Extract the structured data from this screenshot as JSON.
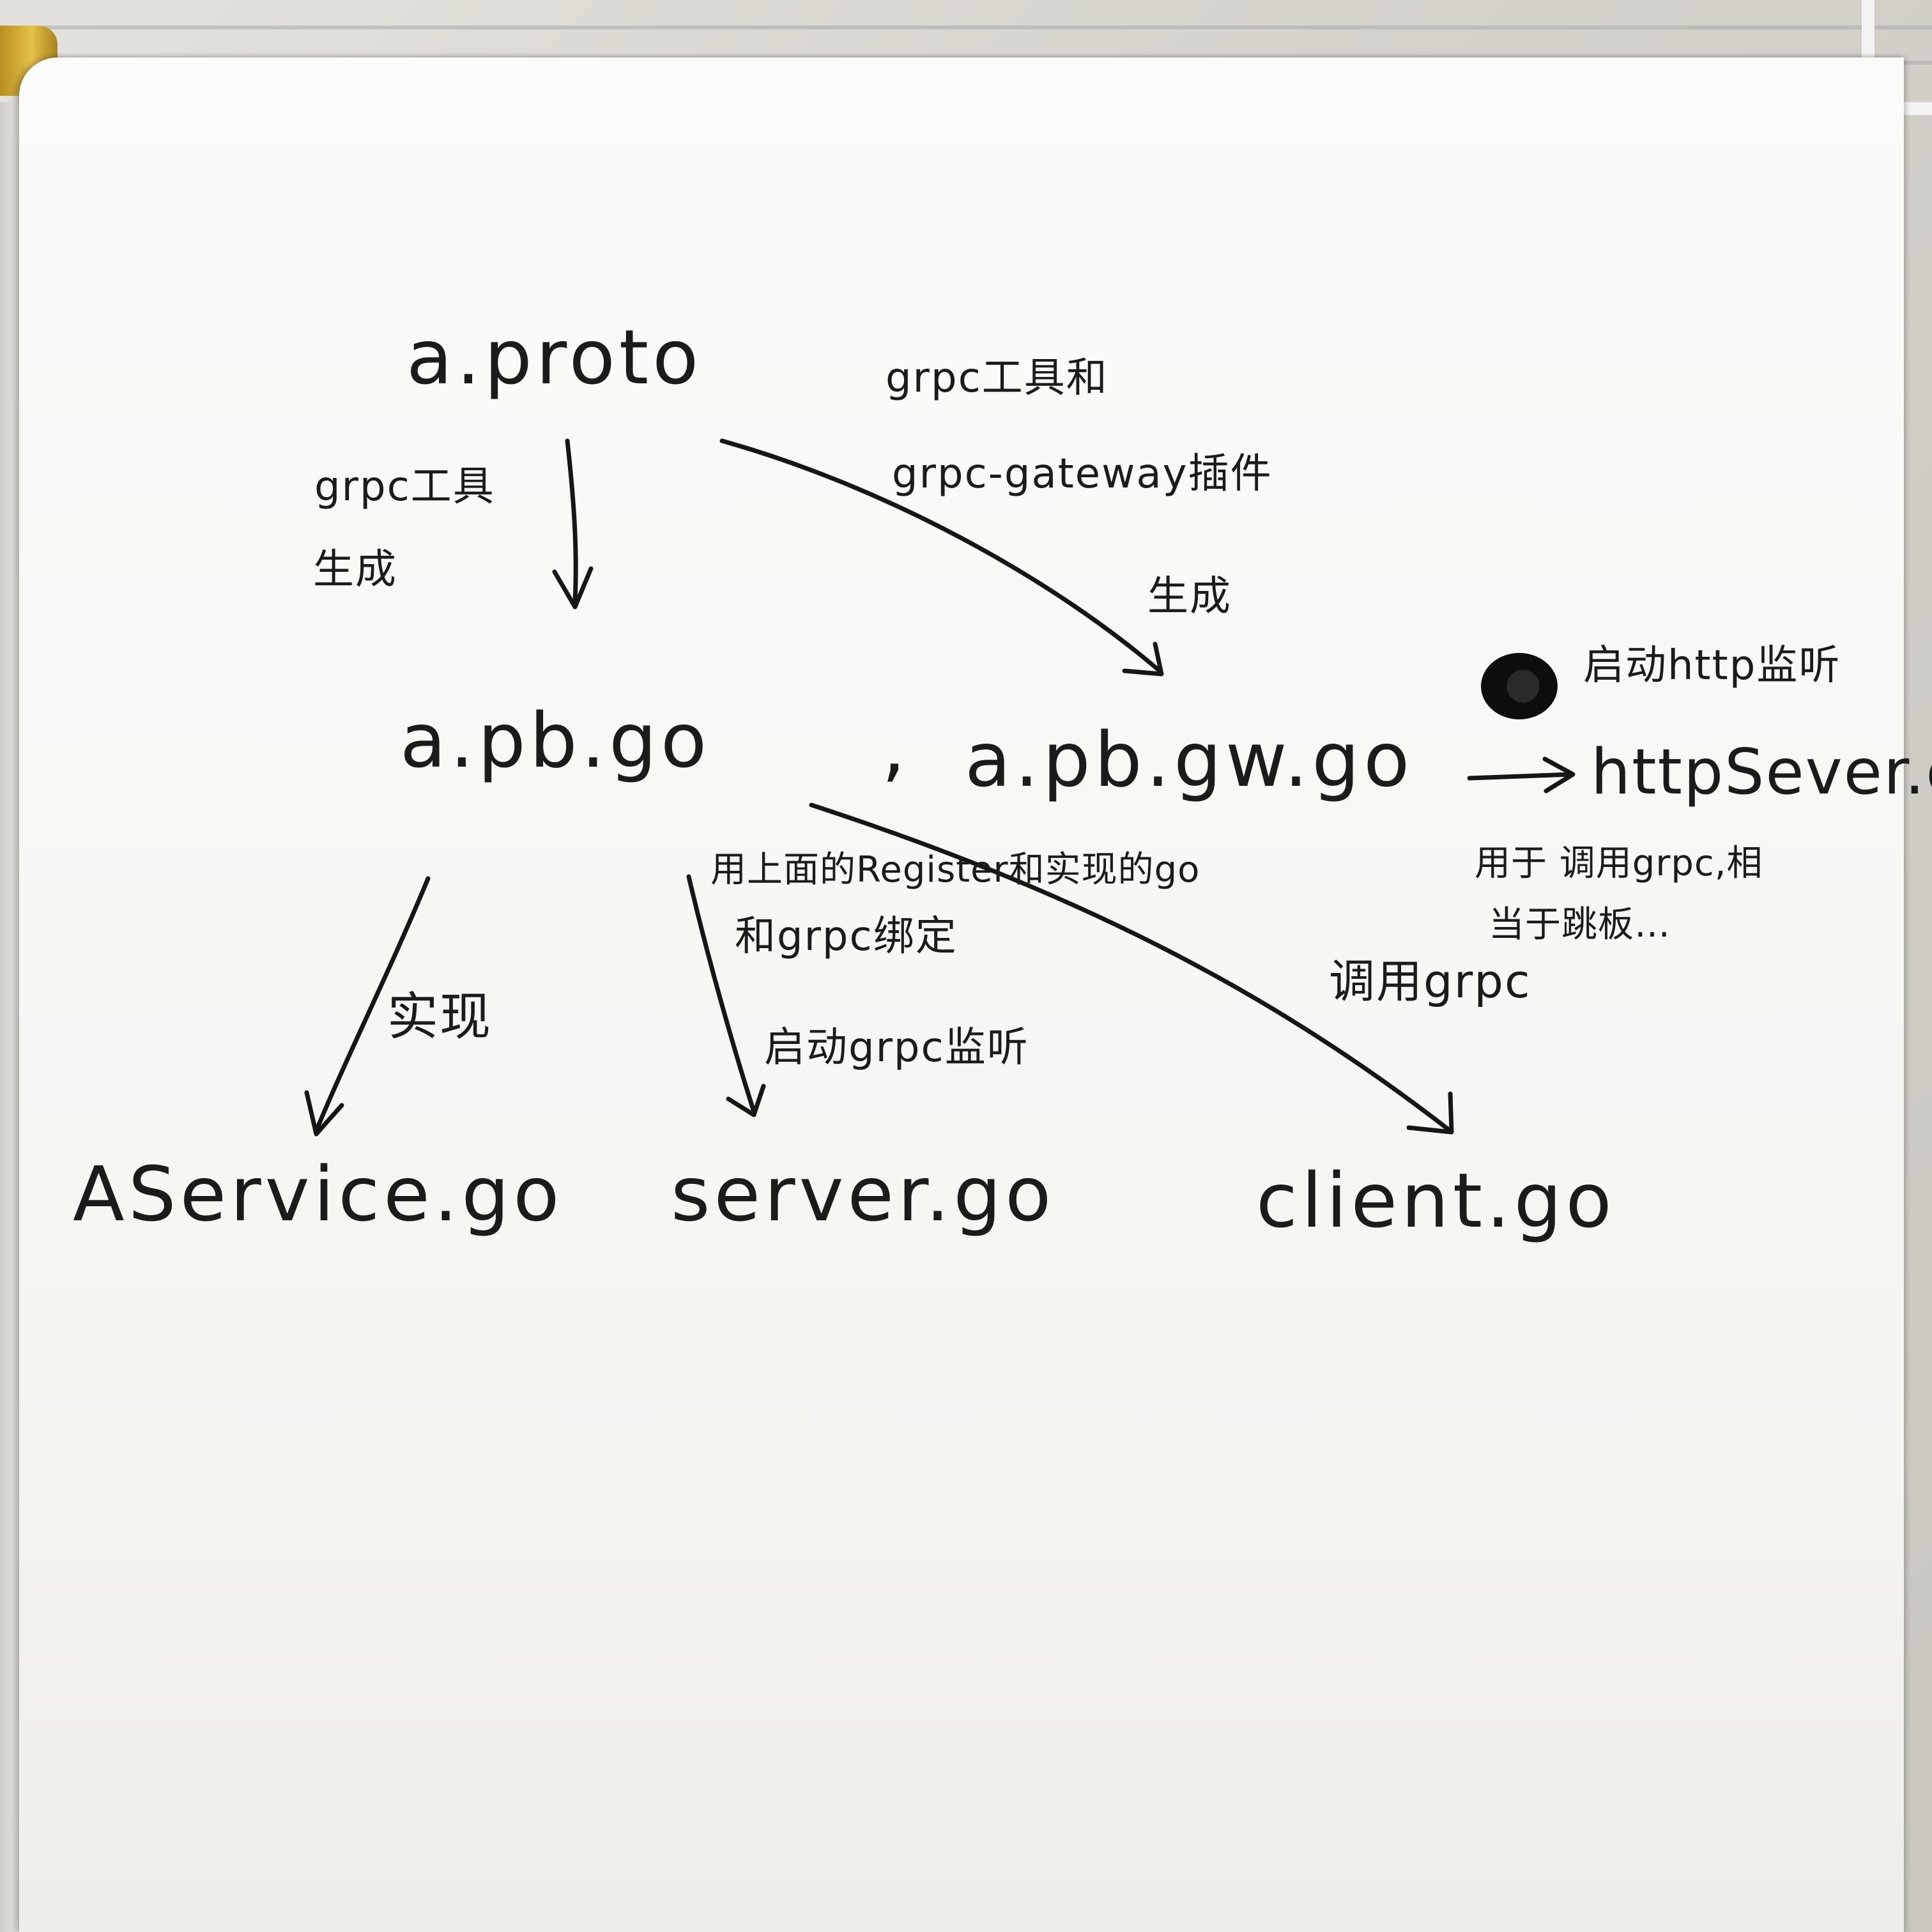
{
  "files": {
    "proto": "a.proto",
    "pb_go": "a.pb.go",
    "comma": ",",
    "pb_gw_go": "a.pb.gw.go",
    "http_server": "httpSever.go",
    "aservice": "AService.go",
    "server": "server.go",
    "client": "client.go"
  },
  "notes": {
    "grpc_tool": "grpc工具",
    "generate_left": "生成",
    "grpc_tool_and": "grpc工具和",
    "gateway_plugin": "grpc-gateway插件",
    "generate_right": "生成",
    "start_http": "启动http监听",
    "http_purpose_1": "用于 调用grpc,相",
    "http_purpose_2": "当于跳板…",
    "register_1": "用上面的Register和实现的go",
    "register_2": "和grpc绑定",
    "start_grpc": "启动grpc监听",
    "implement": "实现",
    "call_grpc": "调用grpc"
  },
  "icons": {
    "scribble": "scribble-icon"
  }
}
